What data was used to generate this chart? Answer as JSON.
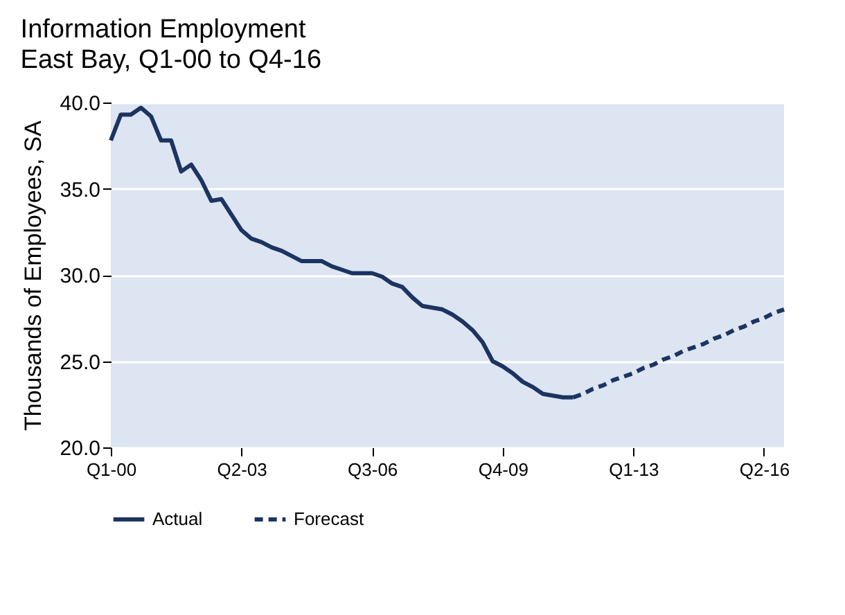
{
  "chart_data": {
    "type": "line",
    "title": "Information Employment",
    "subtitle": "East Bay, Q1-00 to Q4-16",
    "ylabel": "Thousands of Employees, SA",
    "categories": [
      "Q1-00",
      null,
      null,
      null,
      null,
      null,
      null,
      null,
      null,
      null,
      null,
      null,
      null,
      "Q2-03",
      null,
      null,
      null,
      null,
      null,
      null,
      null,
      null,
      null,
      null,
      null,
      null,
      "Q3-06",
      null,
      null,
      null,
      null,
      null,
      null,
      null,
      null,
      null,
      null,
      null,
      null,
      "Q4-09",
      null,
      null,
      null,
      null,
      null,
      null,
      null,
      null,
      null,
      null,
      null,
      null,
      "Q1-13",
      null,
      null,
      null,
      null,
      null,
      null,
      null,
      null,
      null,
      null,
      null,
      null,
      "Q2-16",
      null,
      null
    ],
    "series": [
      {
        "name": "Actual",
        "color": "#1c3461",
        "line_style": "solid",
        "values": [
          37.8,
          39.3,
          39.3,
          39.7,
          39.2,
          37.8,
          37.8,
          36.0,
          36.4,
          35.5,
          34.3,
          34.4,
          33.5,
          32.6,
          32.1,
          31.9,
          31.6,
          31.4,
          31.1,
          30.8,
          30.8,
          30.8,
          30.5,
          30.3,
          30.1,
          30.1,
          30.1,
          29.9,
          29.5,
          29.3,
          28.7,
          28.2,
          28.1,
          28.0,
          27.7,
          27.3,
          26.8,
          26.1,
          25.0,
          24.7,
          24.3,
          23.8,
          23.5,
          23.1,
          23.0,
          22.9,
          22.9,
          null,
          null,
          null,
          null,
          null,
          null,
          null,
          null,
          null,
          null,
          null,
          null,
          null,
          null,
          null,
          null,
          null,
          null,
          null,
          null,
          null
        ]
      },
      {
        "name": "Forecast",
        "color": "#1c3461",
        "line_style": "dashed",
        "values": [
          null,
          null,
          null,
          null,
          null,
          null,
          null,
          null,
          null,
          null,
          null,
          null,
          null,
          null,
          null,
          null,
          null,
          null,
          null,
          null,
          null,
          null,
          null,
          null,
          null,
          null,
          null,
          null,
          null,
          null,
          null,
          null,
          null,
          null,
          null,
          null,
          null,
          null,
          null,
          null,
          null,
          null,
          null,
          null,
          null,
          null,
          22.9,
          23.1,
          23.4,
          23.6,
          23.9,
          24.1,
          24.3,
          24.6,
          24.8,
          25.1,
          25.3,
          25.6,
          25.8,
          26.0,
          26.3,
          26.5,
          26.8,
          27.0,
          27.3,
          27.5,
          27.8,
          28.0
        ]
      }
    ],
    "ylim": [
      20,
      40
    ],
    "yticks": [
      {
        "value": 20,
        "label": "20.0"
      },
      {
        "value": 25,
        "label": "25.0"
      },
      {
        "value": 30,
        "label": "30.0"
      },
      {
        "value": 35,
        "label": "35.0"
      },
      {
        "value": 40,
        "label": "40.0"
      }
    ],
    "grid": "y",
    "legend": "bottom"
  }
}
